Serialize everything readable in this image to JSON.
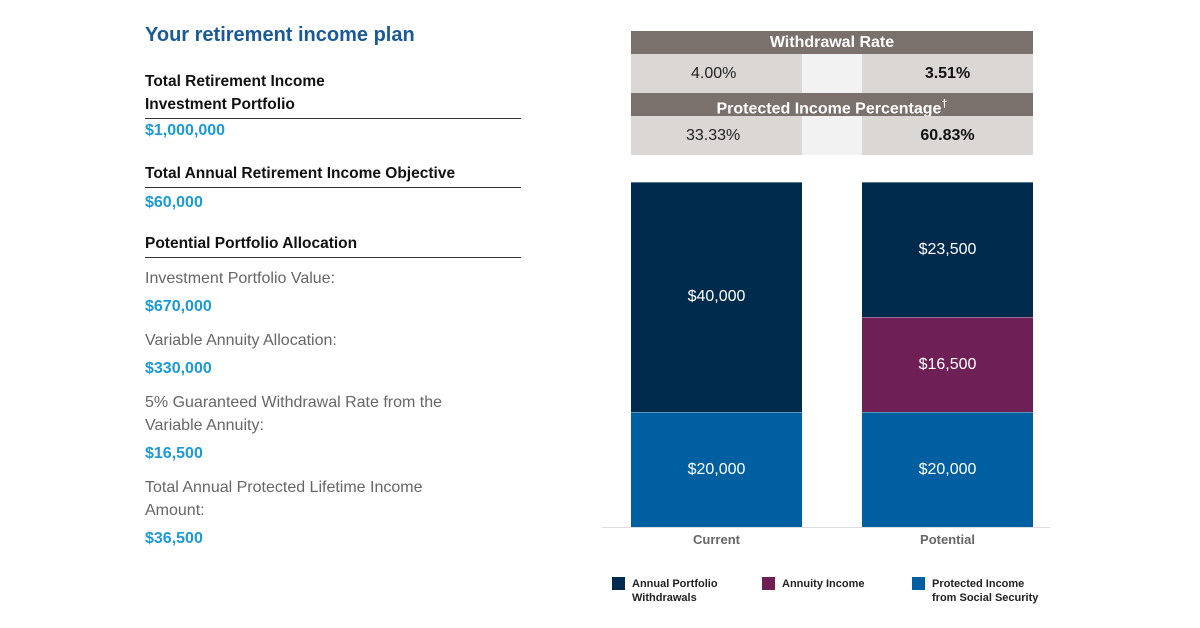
{
  "left": {
    "title": "Your retirement income plan",
    "portfolio_label_1": "Total Retirement Income",
    "portfolio_label_2": "Investment Portfolio",
    "portfolio_value": "$1,000,000",
    "objective_label": "Total Annual Retirement Income Objective",
    "objective_value": "$60,000",
    "allocation_label": "Potential Portfolio Allocation",
    "inv_label": "Investment Portfolio Value:",
    "inv_value": "$670,000",
    "va_label": "Variable Annuity Allocation:",
    "va_value": "$330,000",
    "gwr_label": "5% Guaranteed Withdrawal Rate from the Variable Annuity:",
    "gwr_value": "$16,500",
    "protected_label": "Total Annual Protected Lifetime Income Amount:",
    "protected_value": "$36,500"
  },
  "table": {
    "withdrawal_header": "Withdrawal Rate",
    "withdrawal_current": "4.00%",
    "withdrawal_potential": "3.51%",
    "protected_header": "Protected Income Percentage",
    "protected_sup": "†",
    "protected_current": "33.33%",
    "protected_potential": "60.83%"
  },
  "chart_data": {
    "type": "bar",
    "stacked": true,
    "categories": [
      "Current",
      "Potential"
    ],
    "series": [
      {
        "name": "Protected Income from Social Security",
        "color": "#005fa0",
        "values": [
          20000,
          20000
        ],
        "labels": [
          "$20,000",
          "$20,000"
        ]
      },
      {
        "name": "Annuity Income",
        "color": "#6e1f56",
        "values": [
          0,
          16500
        ],
        "labels": [
          "",
          "$16,500"
        ]
      },
      {
        "name": "Annual Portfolio Withdrawals",
        "color": "#002b4c",
        "values": [
          40000,
          23500
        ],
        "labels": [
          "$40,000",
          "$23,500"
        ]
      }
    ],
    "ylim": [
      0,
      60000
    ],
    "grid": false,
    "legend_position": "bottom",
    "legend": [
      {
        "line1": "Annual Portfolio",
        "line2": "Withdrawals",
        "color": "#002b4c"
      },
      {
        "line1": "Annuity Income",
        "line2": "",
        "color": "#6e1f56"
      },
      {
        "line1": "Protected Income",
        "line2": "from Social Security",
        "color": "#005fa0"
      }
    ]
  }
}
